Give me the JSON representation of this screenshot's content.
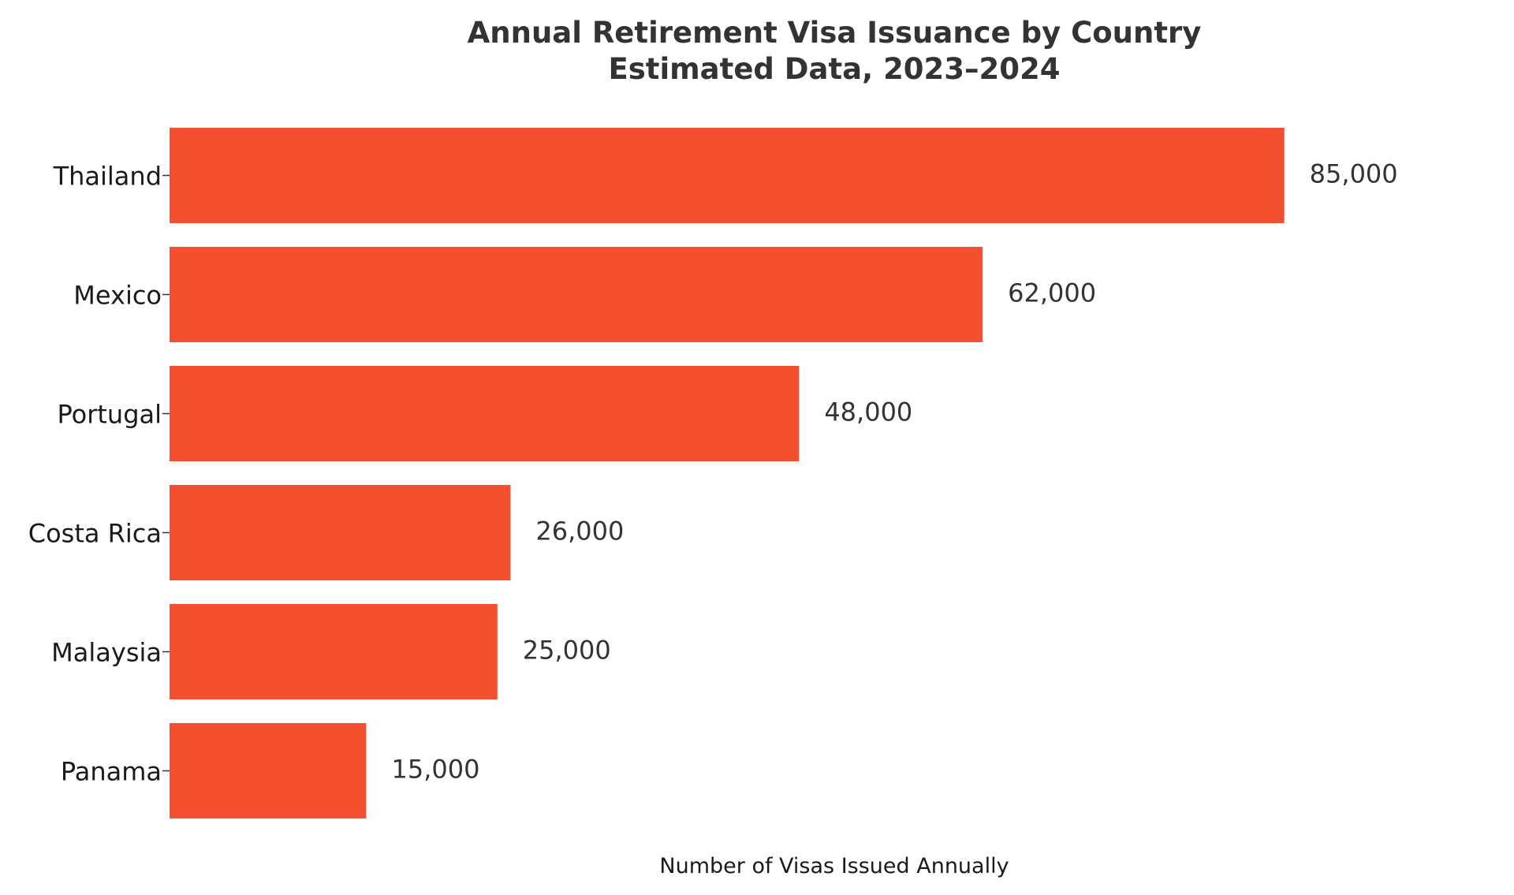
{
  "chart_data": {
    "type": "bar",
    "orientation": "horizontal",
    "title": "Annual Retirement Visa Issuance by Country",
    "subtitle": "Estimated Data, 2023–2024",
    "xlabel": "Number of Visas Issued Annually",
    "ylabel": "",
    "categories": [
      "Thailand",
      "Mexico",
      "Portugal",
      "Costa Rica",
      "Malaysia",
      "Panama"
    ],
    "values": [
      85000,
      62000,
      48000,
      26000,
      25000,
      15000
    ],
    "value_labels": [
      "85,000",
      "62,000",
      "48,000",
      "26,000",
      "25,000",
      "15,000"
    ],
    "xlim": [
      0,
      95000
    ],
    "grid": false,
    "legend": "none",
    "bar_color": "#f44f2f"
  }
}
